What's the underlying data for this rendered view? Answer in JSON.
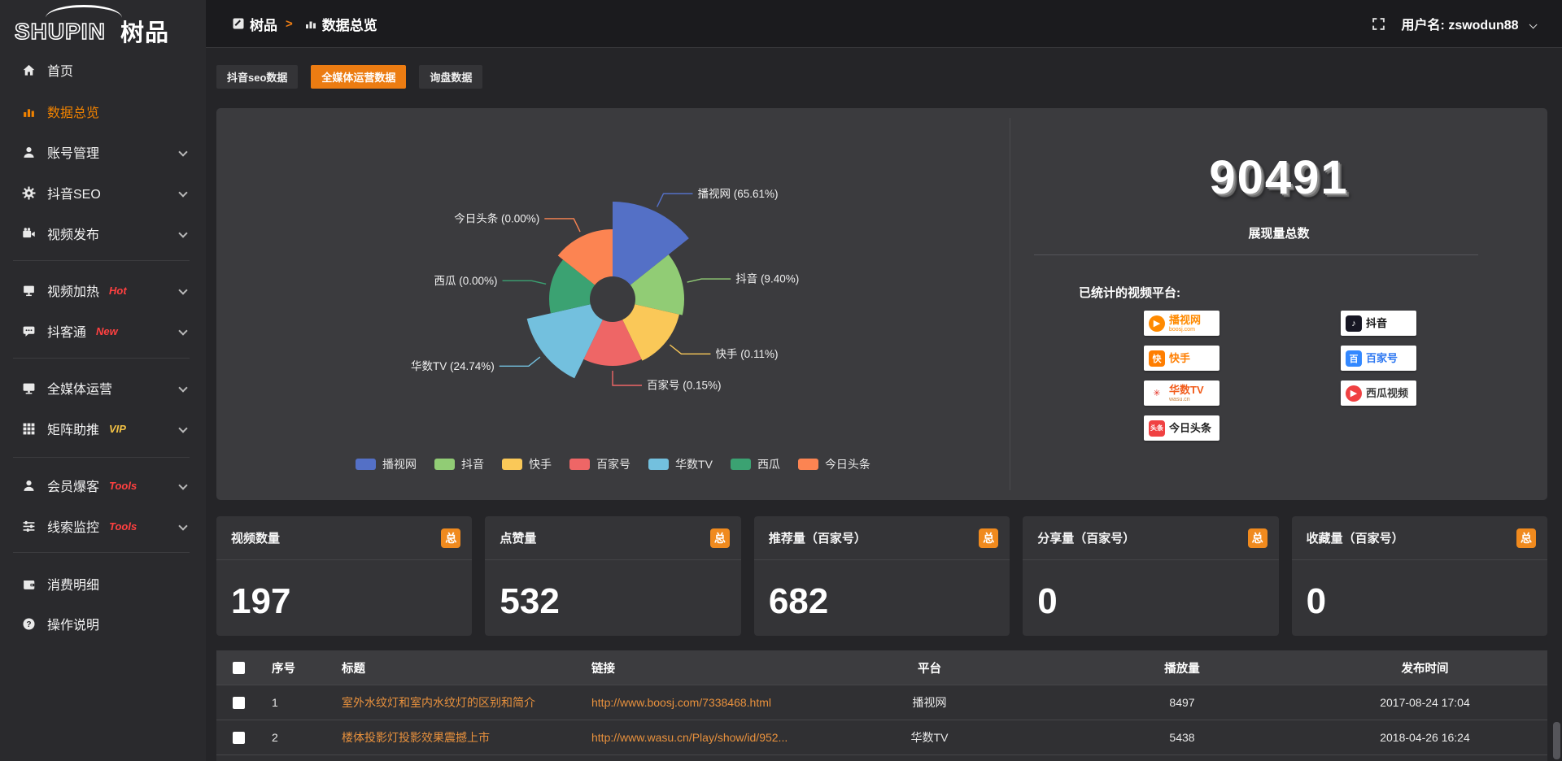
{
  "app": {
    "logo_en": "SHUPIN",
    "logo_cn": "树品"
  },
  "topbar": {
    "breadcrumb_section": "树品",
    "breadcrumb_arrow": ">",
    "breadcrumb_page": "数据总览",
    "user_prefix": "用户名:",
    "username": "zswodun88"
  },
  "sidebar": {
    "items": [
      {
        "icon": "home-icon",
        "label": "首页"
      },
      {
        "icon": "bar-chart-icon",
        "label": "数据总览",
        "active": true
      },
      {
        "icon": "user-icon",
        "label": "账号管理",
        "chevron": true
      },
      {
        "icon": "gear-icon",
        "label": "抖音SEO",
        "chevron": true
      },
      {
        "icon": "video-icon",
        "label": "视频发布",
        "chevron": true
      },
      {
        "icon": "screen-icon",
        "label": "视频加热",
        "tag": "Hot",
        "tag_color": "red",
        "chevron": true
      },
      {
        "icon": "chat-icon",
        "label": "抖客通",
        "tag": "New",
        "tag_color": "red",
        "chevron": true
      },
      {
        "icon": "monitor-icon",
        "label": "全媒体运营",
        "chevron": true
      },
      {
        "icon": "grid-icon",
        "label": "矩阵助推",
        "tag": "VIP",
        "tag_color": "gold",
        "chevron": true
      },
      {
        "icon": "member-icon",
        "label": "会员爆客",
        "tag": "Tools",
        "tag_color": "red",
        "chevron": true
      },
      {
        "icon": "sliders-icon",
        "label": "线索监控",
        "tag": "Tools",
        "tag_color": "red",
        "chevron": true
      },
      {
        "icon": "wallet-icon",
        "label": "消费明细"
      },
      {
        "icon": "question-icon",
        "label": "操作说明"
      }
    ]
  },
  "tabs": [
    {
      "label": "抖音seo数据",
      "active": false
    },
    {
      "label": "全媒体运营数据",
      "active": true
    },
    {
      "label": "询盘数据",
      "active": false
    }
  ],
  "chart_data": {
    "type": "pie",
    "variant": "nightingale-rose",
    "inner_radius_px": 28,
    "legend_position": "bottom-center",
    "slices": [
      {
        "name": "播视网",
        "pct_label": "65.61%",
        "value": 65.61,
        "color": "#5470C6",
        "radius_px": 120
      },
      {
        "name": "抖音",
        "pct_label": "9.40%",
        "value": 9.4,
        "color": "#91CC75",
        "radius_px": 88
      },
      {
        "name": "快手",
        "pct_label": "0.11%",
        "value": 0.11,
        "color": "#FAC858",
        "radius_px": 84
      },
      {
        "name": "百家号",
        "pct_label": "0.15%",
        "value": 0.15,
        "color": "#EE6666",
        "radius_px": 82
      },
      {
        "name": "华数TV",
        "pct_label": "24.74%",
        "value": 24.74,
        "color": "#73C0DE",
        "radius_px": 108
      },
      {
        "name": "西瓜",
        "pct_label": "0.00%",
        "value": 0.0,
        "color": "#3BA272",
        "radius_px": 78
      },
      {
        "name": "今日头条",
        "pct_label": "0.00%",
        "value": 0.0,
        "color": "#FC8452",
        "radius_px": 86
      }
    ]
  },
  "summary": {
    "value": "90491",
    "caption": "展现量总数",
    "platforms_label": "已统计的视频平台:",
    "platforms": [
      {
        "label": "播视网",
        "sub": "boosj.com",
        "glyph": "▶",
        "glyph_shape": "circle",
        "glyph_bg": "#ff8a00",
        "glyph_color": "#fff",
        "label_color": "#ff8a00",
        "sub_color": "#ff8a00",
        "col": 0,
        "row": 0
      },
      {
        "label": "抖音",
        "sub": "",
        "glyph": "♪",
        "glyph_shape": "square",
        "glyph_bg": "#161623",
        "glyph_color": "#fff",
        "label_color": "#111111",
        "sub_color": "#888",
        "col": 1,
        "row": 0
      },
      {
        "label": "快手",
        "sub": "",
        "glyph": "快",
        "glyph_shape": "square",
        "glyph_bg": "#ff7e00",
        "glyph_color": "#fff",
        "label_color": "#ff7e00",
        "sub_color": "#888",
        "col": 0,
        "row": 1
      },
      {
        "label": "百家号",
        "sub": "",
        "glyph": "百",
        "glyph_shape": "square",
        "glyph_bg": "#3388ff",
        "glyph_color": "#fff",
        "label_color": "#2d77f1",
        "sub_color": "#aaa",
        "col": 1,
        "row": 1
      },
      {
        "label": "华数TV",
        "sub": "wasu.cn",
        "glyph": "✳",
        "glyph_shape": "square",
        "glyph_bg": "#ffffff",
        "glyph_color": "#e33226",
        "label_color": "#f25c1b",
        "sub_color": "#c9803a",
        "col": 0,
        "row": 2
      },
      {
        "label": "西瓜视频",
        "sub": "",
        "glyph": "▶",
        "glyph_shape": "circle",
        "glyph_bg": "#f04142",
        "glyph_color": "#fff",
        "label_color": "#3c3c3c",
        "sub_color": "#888",
        "col": 1,
        "row": 2
      },
      {
        "label": "今日头条",
        "sub": "",
        "glyph": "头条",
        "glyph_shape": "square",
        "glyph_bg": "#f04142",
        "glyph_color": "#fff",
        "label_color": "#222222",
        "sub_color": "#888",
        "col": 0,
        "row": 3
      }
    ]
  },
  "stat_cards": [
    {
      "title": "视频数量",
      "badge": "总",
      "value": "197"
    },
    {
      "title": "点赞量",
      "badge": "总",
      "value": "532"
    },
    {
      "title": "推荐量（百家号）",
      "badge": "总",
      "value": "682"
    },
    {
      "title": "分享量（百家号）",
      "badge": "总",
      "value": "0"
    },
    {
      "title": "收藏量（百家号）",
      "badge": "总",
      "value": "0"
    }
  ],
  "table": {
    "headers": [
      "序号",
      "标题",
      "链接",
      "平台",
      "播放量",
      "发布时间"
    ],
    "rows": [
      {
        "num": "1",
        "title": "室外水纹灯和室内水纹灯的区别和简介",
        "link": "http://www.boosj.com/7338468.html",
        "platform": "播视网",
        "plays": "8497",
        "time": "2017-08-24 17:04"
      },
      {
        "num": "2",
        "title": "楼体投影灯投影效果震撼上市",
        "link": "http://www.wasu.cn/Play/show/id/952...",
        "platform": "华数TV",
        "plays": "5438",
        "time": "2018-04-26 16:24"
      }
    ]
  }
}
